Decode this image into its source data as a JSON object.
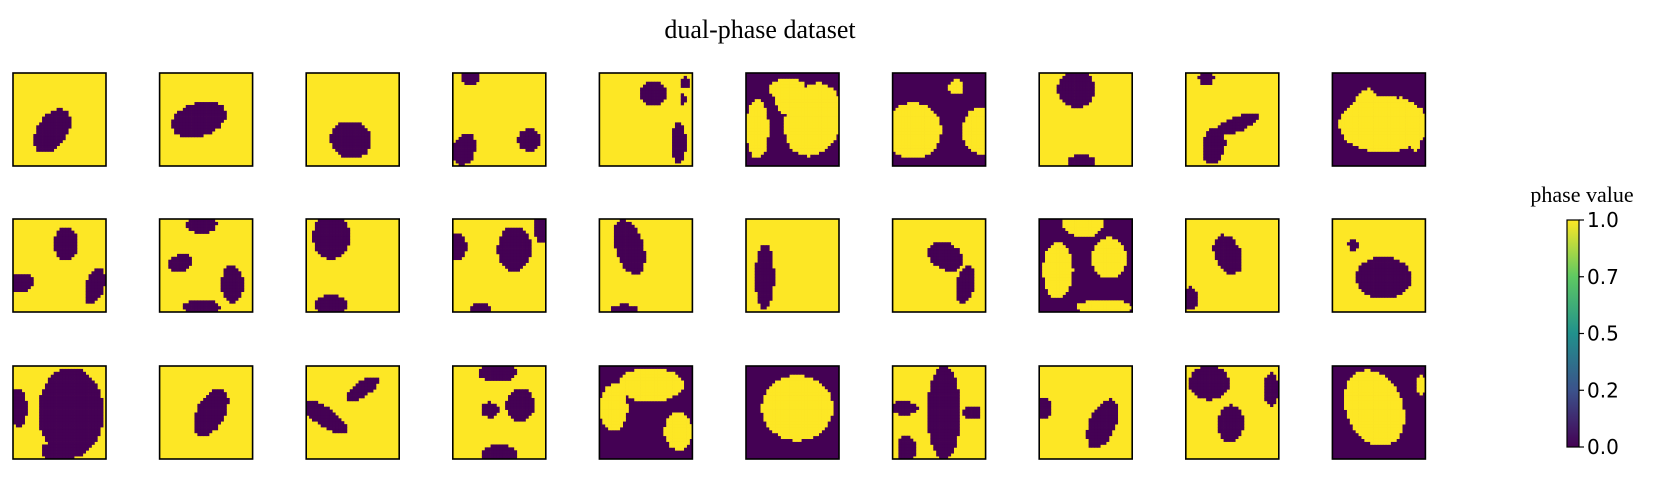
{
  "chart_data": {
    "type": "heatmap",
    "title": "dual-phase dataset",
    "grid": false,
    "layout": {
      "rows": 3,
      "cols": 10
    },
    "colorbar": {
      "label": "phase value",
      "ticks": [
        "1.0",
        "0.7",
        "0.5",
        "0.2",
        "0.0"
      ],
      "range": [
        0,
        1
      ],
      "colormap": "viridis",
      "colors": [
        "#440154",
        "#3b528b",
        "#21918c",
        "#5ec962",
        "#fde725"
      ]
    },
    "phase_colors": {
      "phase_0": "#440154",
      "phase_1": "#fde725"
    },
    "panels": [
      {
        "background": 1,
        "blobs": [
          [
            0.42,
            0.62,
            0.16,
            0.26,
            0.6
          ]
        ]
      },
      {
        "background": 1,
        "blobs": [
          [
            0.42,
            0.5,
            0.3,
            0.18,
            -0.3
          ]
        ]
      },
      {
        "background": 1,
        "blobs": [
          [
            0.48,
            0.72,
            0.22,
            0.2,
            0.3
          ]
        ]
      },
      {
        "background": 1,
        "blobs": [
          [
            0.18,
            0.05,
            0.1,
            0.08,
            0
          ],
          [
            0.82,
            0.72,
            0.12,
            0.12,
            0
          ],
          [
            0.12,
            0.82,
            0.12,
            0.18,
            0.3
          ]
        ]
      },
      {
        "background": 1,
        "blobs": [
          [
            0.58,
            0.22,
            0.14,
            0.13,
            0
          ],
          [
            0.92,
            0.1,
            0.05,
            0.06,
            0
          ],
          [
            0.9,
            0.28,
            0.04,
            0.05,
            0
          ],
          [
            0.85,
            0.75,
            0.08,
            0.22,
            0
          ]
        ]
      },
      {
        "background": 0,
        "blobs": [
          [
            0.72,
            0.5,
            0.3,
            0.4,
            0.3
          ],
          [
            0.45,
            0.18,
            0.2,
            0.12,
            0
          ],
          [
            0.12,
            0.6,
            0.12,
            0.32,
            0
          ],
          [
            0.42,
            0.3,
            0.1,
            0.15,
            0
          ]
        ]
      },
      {
        "background": 0,
        "blobs": [
          [
            0.22,
            0.62,
            0.3,
            0.3,
            0
          ],
          [
            0.95,
            0.62,
            0.2,
            0.25,
            0
          ],
          [
            0.68,
            0.15,
            0.08,
            0.08,
            0
          ]
        ]
      },
      {
        "background": 1,
        "blobs": [
          [
            0.4,
            0.17,
            0.2,
            0.2,
            0
          ],
          [
            0.45,
            0.96,
            0.15,
            0.08,
            0
          ]
        ]
      },
      {
        "background": 1,
        "blobs": [
          [
            0.3,
            0.78,
            0.12,
            0.2,
            0.2
          ],
          [
            0.55,
            0.55,
            0.25,
            0.08,
            -0.4
          ],
          [
            0.22,
            0.05,
            0.08,
            0.08,
            0
          ]
        ]
      },
      {
        "background": 0,
        "blobs": [
          [
            0.55,
            0.55,
            0.48,
            0.3,
            0
          ],
          [
            0.32,
            0.4,
            0.12,
            0.25,
            0.4
          ],
          [
            0.82,
            0.55,
            0.08,
            0.3,
            -0.3
          ]
        ]
      },
      {
        "background": 1,
        "blobs": [
          [
            0.57,
            0.27,
            0.13,
            0.18,
            0
          ],
          [
            0.88,
            0.72,
            0.1,
            0.2,
            0.3
          ],
          [
            0.06,
            0.68,
            0.16,
            0.1,
            0
          ]
        ]
      },
      {
        "background": 1,
        "blobs": [
          [
            0.45,
            0.05,
            0.16,
            0.1,
            0
          ],
          [
            0.22,
            0.47,
            0.14,
            0.09,
            -0.3
          ],
          [
            0.78,
            0.7,
            0.12,
            0.2,
            0
          ],
          [
            0.45,
            0.95,
            0.2,
            0.08,
            0
          ]
        ]
      },
      {
        "background": 1,
        "blobs": [
          [
            0.27,
            0.18,
            0.2,
            0.25,
            0
          ],
          [
            0.27,
            0.92,
            0.18,
            0.1,
            0
          ]
        ]
      },
      {
        "background": 1,
        "blobs": [
          [
            0.66,
            0.32,
            0.18,
            0.24,
            0
          ],
          [
            0.05,
            0.3,
            0.1,
            0.14,
            0
          ],
          [
            0.95,
            0.1,
            0.08,
            0.15,
            0
          ],
          [
            0.3,
            0.98,
            0.12,
            0.08,
            0
          ]
        ]
      },
      {
        "background": 1,
        "blobs": [
          [
            0.32,
            0.3,
            0.15,
            0.3,
            -0.3
          ],
          [
            0.27,
            0.98,
            0.15,
            0.06,
            0
          ]
        ]
      },
      {
        "background": 1,
        "blobs": [
          [
            0.2,
            0.62,
            0.1,
            0.35,
            0
          ]
        ]
      },
      {
        "background": 1,
        "blobs": [
          [
            0.57,
            0.4,
            0.2,
            0.14,
            0.5
          ],
          [
            0.78,
            0.7,
            0.1,
            0.2,
            0.2
          ]
        ]
      },
      {
        "background": 0,
        "blobs": [
          [
            0.47,
            0.05,
            0.22,
            0.14,
            0
          ],
          [
            0.2,
            0.55,
            0.16,
            0.3,
            0
          ],
          [
            0.75,
            0.42,
            0.18,
            0.22,
            0
          ],
          [
            0.7,
            0.95,
            0.3,
            0.08,
            0
          ]
        ]
      },
      {
        "background": 1,
        "blobs": [
          [
            0.45,
            0.38,
            0.14,
            0.22,
            -0.4
          ],
          [
            0.05,
            0.85,
            0.08,
            0.12,
            0
          ]
        ]
      },
      {
        "background": 1,
        "blobs": [
          [
            0.55,
            0.63,
            0.3,
            0.22,
            0
          ],
          [
            0.22,
            0.28,
            0.05,
            0.06,
            0
          ]
        ]
      },
      {
        "background": 1,
        "blobs": [
          [
            0.62,
            0.5,
            0.35,
            0.48,
            0
          ],
          [
            0.05,
            0.45,
            0.1,
            0.2,
            0
          ],
          [
            0.5,
            0.92,
            0.2,
            0.12,
            0
          ]
        ]
      },
      {
        "background": 1,
        "blobs": [
          [
            0.55,
            0.5,
            0.15,
            0.28,
            0.5
          ]
        ]
      },
      {
        "background": 1,
        "blobs": [
          [
            0.2,
            0.55,
            0.28,
            0.1,
            0.6
          ],
          [
            0.6,
            0.25,
            0.2,
            0.08,
            -0.6
          ]
        ]
      },
      {
        "background": 1,
        "blobs": [
          [
            0.48,
            0.07,
            0.2,
            0.1,
            0
          ],
          [
            0.72,
            0.42,
            0.15,
            0.18,
            0
          ],
          [
            0.4,
            0.47,
            0.1,
            0.08,
            0
          ],
          [
            0.5,
            0.95,
            0.2,
            0.1,
            0
          ]
        ]
      },
      {
        "background": 0,
        "blobs": [
          [
            0.55,
            0.2,
            0.35,
            0.18,
            0
          ],
          [
            0.15,
            0.45,
            0.15,
            0.25,
            0
          ],
          [
            0.85,
            0.7,
            0.15,
            0.2,
            0
          ]
        ]
      },
      {
        "background": 0,
        "blobs": [
          [
            0.55,
            0.45,
            0.38,
            0.35,
            0
          ]
        ]
      },
      {
        "background": 1,
        "blobs": [
          [
            0.55,
            0.5,
            0.18,
            0.5,
            0
          ],
          [
            0.12,
            0.45,
            0.15,
            0.07,
            0
          ],
          [
            0.15,
            0.9,
            0.1,
            0.15,
            0
          ],
          [
            0.85,
            0.5,
            0.1,
            0.07,
            0
          ]
        ]
      },
      {
        "background": 1,
        "blobs": [
          [
            0.05,
            0.45,
            0.08,
            0.12,
            0
          ],
          [
            0.68,
            0.62,
            0.14,
            0.28,
            0.4
          ]
        ]
      },
      {
        "background": 1,
        "blobs": [
          [
            0.25,
            0.18,
            0.22,
            0.18,
            0
          ],
          [
            0.48,
            0.62,
            0.14,
            0.2,
            0
          ],
          [
            0.92,
            0.25,
            0.08,
            0.18,
            0
          ]
        ]
      },
      {
        "background": 0,
        "blobs": [
          [
            0.45,
            0.45,
            0.3,
            0.42,
            -0.4
          ],
          [
            0.95,
            0.2,
            0.05,
            0.1,
            0
          ]
        ]
      }
    ]
  }
}
